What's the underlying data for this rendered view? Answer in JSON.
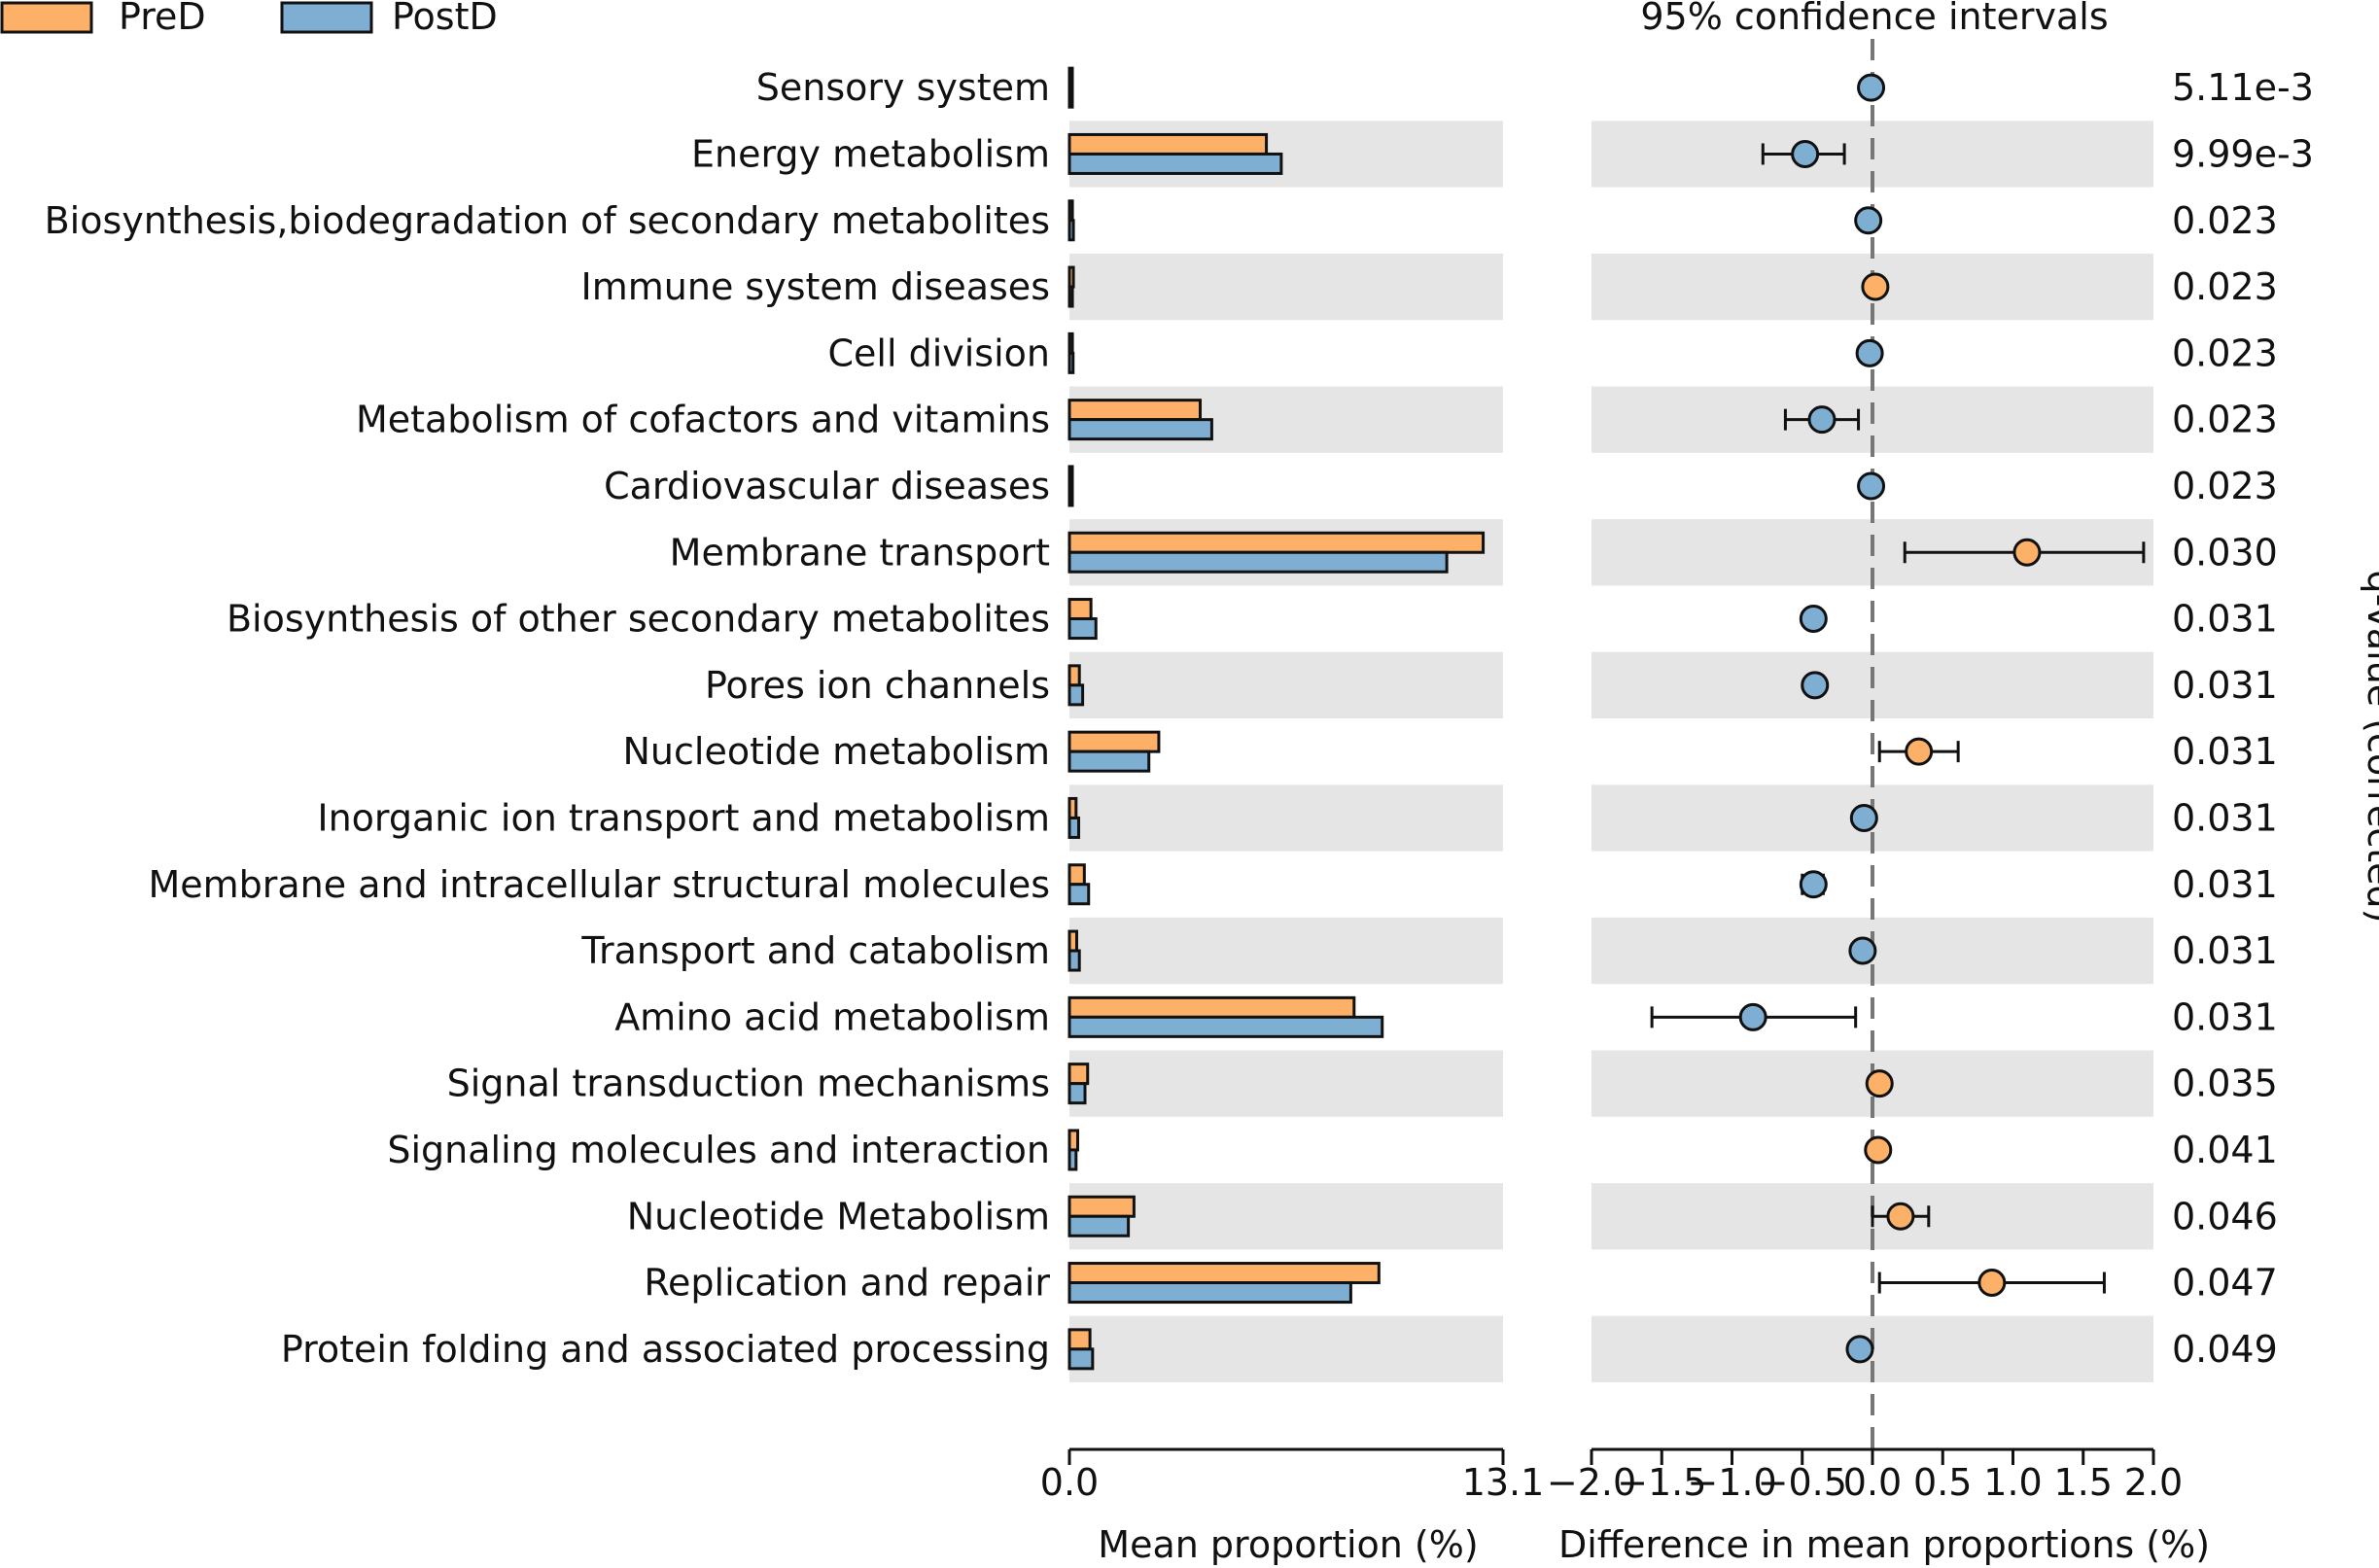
{
  "chart_data": {
    "type": "bar",
    "legend": [
      {
        "name": "PreD",
        "color": "#FDB068"
      },
      {
        "name": "PostD",
        "color": "#7FAED3"
      }
    ],
    "ci_title": "95% confidence intervals",
    "q_label": "q-value (corrected)",
    "left_xlabel": "Mean proportion (%)",
    "right_xlabel": "Difference in mean proportions (%)",
    "left_xlim": [
      0,
      13.1
    ],
    "left_ticks": [
      "0.0",
      "13.1"
    ],
    "right_xlim": [
      -2.0,
      2.0
    ],
    "right_ticks": [
      "−2.0",
      "−1.5",
      "−1.0",
      "−0.5",
      "0.0",
      "0.5",
      "1.0",
      "1.5",
      "2.0"
    ],
    "categories": [
      {
        "label": "Sensory system",
        "pre": 0.02,
        "post": 0.03,
        "diff": -0.01,
        "ci": [
          -0.04,
          0.02
        ],
        "q": "5.11e-3"
      },
      {
        "label": "Energy metabolism",
        "pre": 5.95,
        "post": 6.4,
        "diff": -0.48,
        "ci": [
          -0.78,
          -0.2
        ],
        "q": "9.99e-3"
      },
      {
        "label": "Biosynthesis,biodegradation of secondary metabolites",
        "pre": 0.09,
        "post": 0.12,
        "diff": -0.03,
        "ci": [
          -0.06,
          0.0
        ],
        "q": "0.023"
      },
      {
        "label": "Immune system diseases",
        "pre": 0.12,
        "post": 0.09,
        "diff": 0.02,
        "ci": [
          0.0,
          0.05
        ],
        "q": "0.023"
      },
      {
        "label": "Cell division",
        "pre": 0.09,
        "post": 0.11,
        "diff": -0.02,
        "ci": [
          -0.05,
          0.0
        ],
        "q": "0.023"
      },
      {
        "label": "Metabolism of cofactors and vitamins",
        "pre": 3.95,
        "post": 4.3,
        "diff": -0.36,
        "ci": [
          -0.62,
          -0.1
        ],
        "q": "0.023"
      },
      {
        "label": "Cardiovascular diseases",
        "pre": 0.05,
        "post": 0.07,
        "diff": -0.01,
        "ci": [
          -0.04,
          0.01
        ],
        "q": "0.023"
      },
      {
        "label": "Membrane transport",
        "pre": 12.5,
        "post": 11.4,
        "diff": 1.1,
        "ci": [
          0.23,
          1.93
        ],
        "q": "0.030"
      },
      {
        "label": "Biosynthesis of other secondary metabolites",
        "pre": 0.65,
        "post": 0.8,
        "diff": -0.42,
        "ci": [
          -0.45,
          -0.38
        ],
        "q": "0.031"
      },
      {
        "label": "Pores ion channels",
        "pre": 0.3,
        "post": 0.4,
        "diff": -0.41,
        "ci": [
          -0.44,
          -0.37
        ],
        "q": "0.031"
      },
      {
        "label": "Nucleotide metabolism",
        "pre": 2.7,
        "post": 2.4,
        "diff": 0.33,
        "ci": [
          0.05,
          0.61
        ],
        "q": "0.031"
      },
      {
        "label": "Inorganic ion transport and metabolism",
        "pre": 0.2,
        "post": 0.28,
        "diff": -0.06,
        "ci": [
          -0.1,
          -0.02
        ],
        "q": "0.031"
      },
      {
        "label": "Membrane and intracellular structural molecules",
        "pre": 0.45,
        "post": 0.58,
        "diff": -0.42,
        "ci": [
          -0.5,
          -0.35
        ],
        "q": "0.031"
      },
      {
        "label": "Transport and catabolism",
        "pre": 0.22,
        "post": 0.3,
        "diff": -0.07,
        "ci": [
          -0.1,
          -0.04
        ],
        "q": "0.031"
      },
      {
        "label": "Amino acid metabolism",
        "pre": 8.6,
        "post": 9.45,
        "diff": -0.85,
        "ci": [
          -1.57,
          -0.12
        ],
        "q": "0.031"
      },
      {
        "label": "Signal transduction mechanisms",
        "pre": 0.55,
        "post": 0.47,
        "diff": 0.05,
        "ci": [
          0.03,
          0.08
        ],
        "q": "0.035"
      },
      {
        "label": "Signaling molecules and interaction",
        "pre": 0.25,
        "post": 0.2,
        "diff": 0.04,
        "ci": [
          0.02,
          0.06
        ],
        "q": "0.041"
      },
      {
        "label": "Nucleotide Metabolism",
        "pre": 1.95,
        "post": 1.78,
        "diff": 0.2,
        "ci": [
          0.0,
          0.4
        ],
        "q": "0.046"
      },
      {
        "label": "Replication and repair",
        "pre": 9.35,
        "post": 8.5,
        "diff": 0.85,
        "ci": [
          0.05,
          1.65
        ],
        "q": "0.047"
      },
      {
        "label": "Protein folding and associated processing",
        "pre": 0.62,
        "post": 0.7,
        "diff": -0.09,
        "ci": [
          -0.12,
          -0.06
        ],
        "q": "0.049"
      }
    ]
  }
}
